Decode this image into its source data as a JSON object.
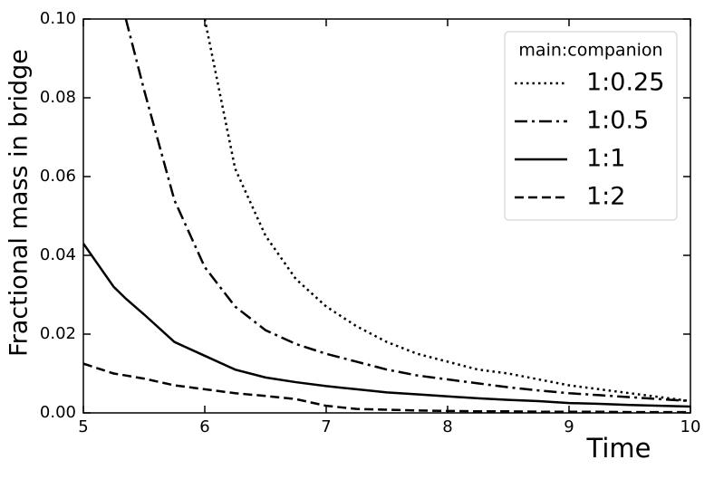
{
  "chart_data": {
    "type": "line",
    "xlabel": "Time",
    "ylabel": "Fractional mass in bridge",
    "x": [
      5,
      5.25,
      5.35,
      5.5,
      5.75,
      6,
      6.25,
      6.5,
      6.75,
      7,
      7.25,
      7.5,
      7.75,
      8,
      8.25,
      8.5,
      8.75,
      9,
      9.25,
      9.5,
      9.75,
      10
    ],
    "series": [
      {
        "name": "1:0.25",
        "color": "#000000",
        "dash": "dotted",
        "values": [
          null,
          null,
          null,
          null,
          null,
          0.1,
          0.062,
          0.045,
          0.034,
          0.027,
          0.022,
          0.018,
          0.015,
          0.013,
          0.011,
          0.01,
          0.0085,
          0.007,
          0.006,
          0.005,
          0.004,
          0.003
        ]
      },
      {
        "name": "1:0.5",
        "color": "#000000",
        "dash": "dashdot",
        "values": [
          null,
          null,
          0.1,
          0.082,
          0.054,
          0.037,
          0.027,
          0.021,
          0.0175,
          0.015,
          0.013,
          0.011,
          0.0095,
          0.0085,
          0.0075,
          0.0065,
          0.0057,
          0.005,
          0.0045,
          0.004,
          0.0035,
          0.003
        ]
      },
      {
        "name": "1:1",
        "color": "#000000",
        "dash": "solid",
        "values": [
          0.043,
          0.032,
          0.029,
          0.025,
          0.018,
          0.0145,
          0.011,
          0.009,
          0.0078,
          0.0068,
          0.006,
          0.0052,
          0.0047,
          0.0042,
          0.0037,
          0.0033,
          0.003,
          0.0025,
          0.0023,
          0.002,
          0.0018,
          0.0016
        ]
      },
      {
        "name": "1:2",
        "color": "#000000",
        "dash": "dashed",
        "values": [
          0.0125,
          0.01,
          0.0095,
          0.0087,
          0.007,
          0.006,
          0.005,
          0.0043,
          0.0035,
          0.0018,
          0.001,
          0.0008,
          0.0006,
          0.0005,
          0.0004,
          0.0004,
          0.0003,
          0.0003,
          0.0003,
          0.0002,
          0.0002,
          0.0002
        ]
      }
    ],
    "legend_title": "main:companion",
    "legend": "upper right",
    "xlim": [
      5,
      10
    ],
    "xticks": [
      5,
      6,
      7,
      8,
      9,
      10
    ],
    "ylim": [
      0,
      0.1
    ],
    "yticks": [
      {
        "value": 0,
        "label": "0.00"
      },
      {
        "value": 0.02,
        "label": "0.02"
      },
      {
        "value": 0.04,
        "label": "0.04"
      },
      {
        "value": 0.06,
        "label": "0.06"
      },
      {
        "value": 0.08,
        "label": "0.08"
      },
      {
        "value": 0.1,
        "label": "0.10"
      }
    ],
    "grid": false
  }
}
